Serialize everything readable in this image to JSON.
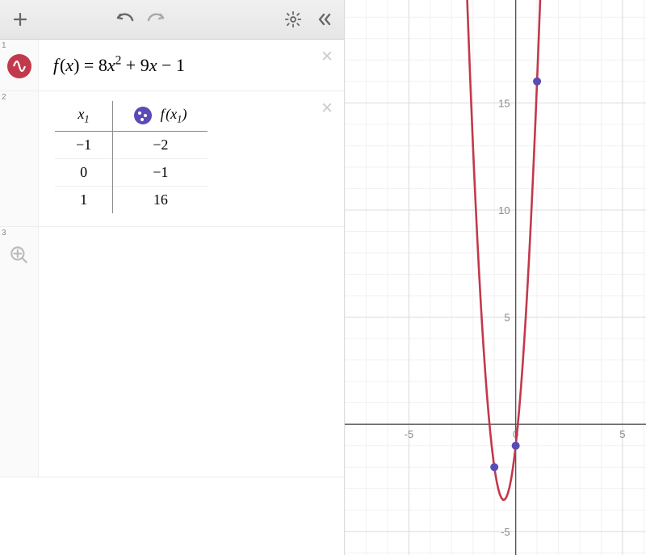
{
  "toolbar": {
    "add_label": "+",
    "undo_label": "undo",
    "redo_label": "redo",
    "settings_label": "settings",
    "collapse_label": "<<"
  },
  "expressions": [
    {
      "index": "1",
      "type": "equation",
      "lhs_fn": "f",
      "lhs_var": "x",
      "rhs_a": "8",
      "rhs_b": "9",
      "rhs_c": "1",
      "color": "#c2394b"
    },
    {
      "index": "2",
      "type": "table",
      "col1_header_var": "x",
      "col1_header_sub": "1",
      "col2_header_fn": "f",
      "col2_header_var": "x",
      "col2_header_sub": "1",
      "point_color": "#5b4bb7",
      "rows": [
        {
          "x": "−1",
          "fx": "−2"
        },
        {
          "x": "0",
          "fx": "−1"
        },
        {
          "x": "1",
          "fx": "16"
        }
      ]
    },
    {
      "index": "3",
      "type": "empty"
    }
  ],
  "graph": {
    "type": "line",
    "background_color": "#ffffff",
    "minor_grid_color": "#f1f1f1",
    "major_grid_color": "#dcdcdc",
    "axis_color": "#555555",
    "curve_color": "#c2394b",
    "curve_width": 2.6,
    "point_color": "#5b4bb7",
    "point_radius": 5,
    "xlim": [
      -8.0,
      6.1
    ],
    "ylim": [
      -6.1,
      19.8
    ],
    "x_ticks": [
      {
        "v": -5,
        "label": "-5"
      },
      {
        "v": 0,
        "label": "0"
      },
      {
        "v": 5,
        "label": "5"
      }
    ],
    "y_ticks": [
      {
        "v": -5,
        "label": "-5"
      },
      {
        "v": 5,
        "label": "5"
      },
      {
        "v": 10,
        "label": "10"
      },
      {
        "v": 15,
        "label": "15"
      }
    ],
    "tick_fontsize": 13,
    "tick_color": "#888888",
    "points": [
      {
        "x": -1,
        "y": -2
      },
      {
        "x": 0,
        "y": -1
      },
      {
        "x": 1,
        "y": 16
      }
    ],
    "fn": {
      "a": 8,
      "b": 9,
      "c": -1
    }
  }
}
